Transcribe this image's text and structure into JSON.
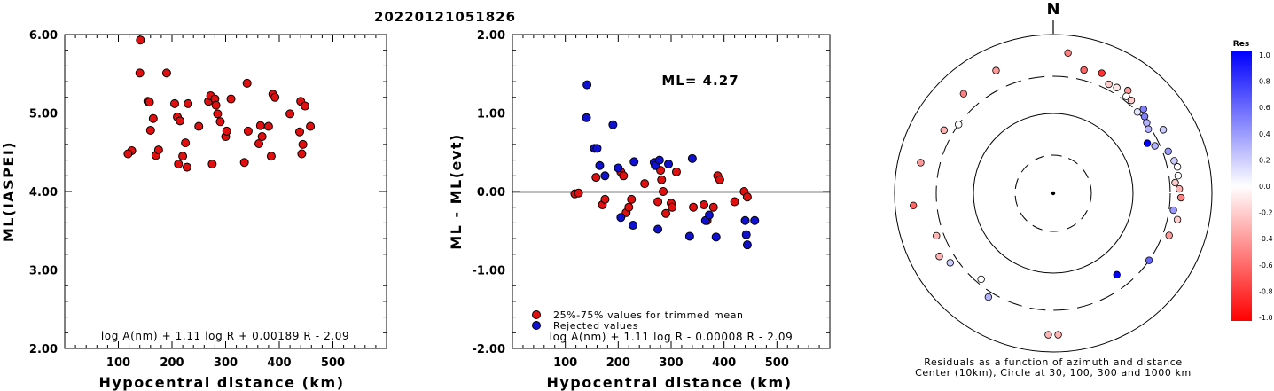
{
  "title": "20220121051826",
  "chart_data": [
    {
      "type": "scatter",
      "xlabel": "Hypocentral distance (km)",
      "ylabel": "ML(IASPEI)",
      "xlim": [
        0,
        600
      ],
      "ylim": [
        2.0,
        6.0
      ],
      "xticks": [
        "100",
        "200",
        "300",
        "400",
        "500"
      ],
      "yticks": [
        "2.00",
        "3.00",
        "4.00",
        "5.00",
        "6.00"
      ],
      "formula": "log A(nm) + 1.11 log R + 0.00189 R - 2.09",
      "points": [
        [
          141,
          5.93
        ],
        [
          140,
          5.51
        ],
        [
          190,
          5.51
        ],
        [
          125,
          4.52
        ],
        [
          118,
          4.48
        ],
        [
          155,
          5.15
        ],
        [
          158,
          5.14
        ],
        [
          160,
          4.78
        ],
        [
          165,
          4.93
        ],
        [
          170,
          4.46
        ],
        [
          175,
          4.53
        ],
        [
          205,
          5.12
        ],
        [
          210,
          4.95
        ],
        [
          212,
          4.35
        ],
        [
          215,
          4.9
        ],
        [
          220,
          4.45
        ],
        [
          225,
          4.62
        ],
        [
          230,
          5.12
        ],
        [
          228,
          4.31
        ],
        [
          250,
          4.83
        ],
        [
          268,
          5.15
        ],
        [
          272,
          5.22
        ],
        [
          275,
          4.35
        ],
        [
          280,
          5.18
        ],
        [
          282,
          5.1
        ],
        [
          285,
          4.99
        ],
        [
          290,
          4.89
        ],
        [
          300,
          4.7
        ],
        [
          302,
          4.77
        ],
        [
          310,
          5.18
        ],
        [
          335,
          4.37
        ],
        [
          340,
          5.38
        ],
        [
          342,
          4.77
        ],
        [
          362,
          4.61
        ],
        [
          365,
          4.84
        ],
        [
          368,
          4.7
        ],
        [
          380,
          4.83
        ],
        [
          385,
          4.45
        ],
        [
          388,
          5.24
        ],
        [
          392,
          5.2
        ],
        [
          420,
          4.99
        ],
        [
          438,
          4.76
        ],
        [
          440,
          5.15
        ],
        [
          442,
          4.48
        ],
        [
          444,
          4.6
        ],
        [
          448,
          5.09
        ],
        [
          458,
          4.83
        ]
      ]
    },
    {
      "type": "scatter",
      "xlabel": "Hypocentral distance (km)",
      "ylabel": "ML - ML(evt)",
      "xlim": [
        0,
        600
      ],
      "ylim": [
        -2.0,
        2.0
      ],
      "xticks": [
        "100",
        "200",
        "300",
        "400",
        "500"
      ],
      "yticks": [
        "-2.00",
        "-1.00",
        "0.00",
        "1.00",
        "2.00"
      ],
      "annotation": "ML= 4.27",
      "formula": "log A(nm) + 1.11 log R - 0.00008 R - 2.09",
      "series": [
        {
          "name": "25%-75% values for trimmed mean",
          "color": "#e01010",
          "points": [
            [
              118,
              -0.03
            ],
            [
              125,
              -0.02
            ],
            [
              158,
              0.18
            ],
            [
              170,
              -0.17
            ],
            [
              175,
              -0.1
            ],
            [
              205,
              0.25
            ],
            [
              210,
              0.2
            ],
            [
              215,
              -0.27
            ],
            [
              220,
              -0.2
            ],
            [
              225,
              -0.1
            ],
            [
              250,
              0.1
            ],
            [
              275,
              -0.13
            ],
            [
              280,
              0.27
            ],
            [
              282,
              0.15
            ],
            [
              285,
              0.0
            ],
            [
              290,
              -0.28
            ],
            [
              300,
              -0.15
            ],
            [
              302,
              -0.2
            ],
            [
              310,
              0.25
            ],
            [
              342,
              -0.2
            ],
            [
              362,
              -0.17
            ],
            [
              368,
              -0.37
            ],
            [
              380,
              -0.2
            ],
            [
              388,
              0.2
            ],
            [
              392,
              0.15
            ],
            [
              420,
              -0.13
            ],
            [
              438,
              0.0
            ],
            [
              444,
              -0.07
            ]
          ]
        },
        {
          "name": "Rejected values",
          "color": "#1010d0",
          "points": [
            [
              141,
              1.36
            ],
            [
              140,
              0.94
            ],
            [
              190,
              0.85
            ],
            [
              155,
              0.55
            ],
            [
              160,
              0.55
            ],
            [
              165,
              0.33
            ],
            [
              175,
              0.2
            ],
            [
              200,
              0.3
            ],
            [
              205,
              -0.33
            ],
            [
              230,
              0.38
            ],
            [
              228,
              -0.43
            ],
            [
              268,
              0.37
            ],
            [
              270,
              0.33
            ],
            [
              275,
              -0.48
            ],
            [
              278,
              0.4
            ],
            [
              295,
              0.35
            ],
            [
              335,
              -0.57
            ],
            [
              340,
              0.42
            ],
            [
              365,
              -0.37
            ],
            [
              372,
              -0.3
            ],
            [
              385,
              -0.58
            ],
            [
              440,
              -0.37
            ],
            [
              442,
              -0.55
            ],
            [
              444,
              -0.68
            ],
            [
              458,
              -0.37
            ]
          ]
        }
      ]
    },
    {
      "type": "polar-scatter",
      "top_label": "N",
      "caption_line1": "Residuals as a function of azimuth and distance",
      "caption_line2": "Center (10km), Circle at 30, 100, 300 and 1000 km",
      "rings_km": [
        30,
        100,
        300,
        1000
      ],
      "points": [
        {
          "az": 14,
          "dist": 400,
          "res": -0.6
        },
        {
          "az": 22,
          "dist": 430,
          "res": -0.8
        },
        {
          "az": 36,
          "dist": 400,
          "res": -0.4
        },
        {
          "az": 27,
          "dist": 350,
          "res": -0.2
        },
        {
          "az": 31,
          "dist": 360,
          "res": -0.1
        },
        {
          "az": 37,
          "dist": 340,
          "res": 0.0
        },
        {
          "az": 46,
          "dist": 300,
          "res": 0.1
        },
        {
          "az": 40,
          "dist": 340,
          "res": -0.2
        },
        {
          "az": 47,
          "dist": 360,
          "res": 0.5
        },
        {
          "az": 50,
          "dist": 320,
          "res": 0.5
        },
        {
          "az": 53,
          "dist": 300,
          "res": 0.3
        },
        {
          "az": 56,
          "dist": 280,
          "res": 0.3
        },
        {
          "az": 62,
          "dist": 220,
          "res": 1.0
        },
        {
          "az": 65,
          "dist": 260,
          "res": 0.3
        },
        {
          "az": 60,
          "dist": 400,
          "res": 0.2
        },
        {
          "az": 70,
          "dist": 350,
          "res": 0.4
        },
        {
          "az": 75,
          "dist": 380,
          "res": 0.2
        },
        {
          "az": 78,
          "dist": 400,
          "res": 0.0
        },
        {
          "az": 82,
          "dist": 390,
          "res": 0.0
        },
        {
          "az": 85,
          "dist": 350,
          "res": -0.2
        },
        {
          "az": 88,
          "dist": 390,
          "res": -0.3
        },
        {
          "az": 92,
          "dist": 410,
          "res": -0.5
        },
        {
          "az": 98,
          "dist": 340,
          "res": 0.4
        },
        {
          "az": 102,
          "dist": 400,
          "res": -0.2
        },
        {
          "az": 110,
          "dist": 360,
          "res": -0.4
        },
        {
          "az": 125,
          "dist": 300,
          "res": 0.6
        },
        {
          "az": 142,
          "dist": 200,
          "res": 1.0
        },
        {
          "az": 178,
          "dist": 610,
          "res": -0.3
        },
        {
          "az": 182,
          "dist": 610,
          "res": -0.3
        },
        {
          "az": 212,
          "dist": 350,
          "res": 0.3
        },
        {
          "az": 220,
          "dist": 260,
          "res": 0.0
        },
        {
          "az": 236,
          "dist": 370,
          "res": 0.2
        },
        {
          "az": 241,
          "dist": 440,
          "res": -0.3
        },
        {
          "az": 250,
          "dist": 370,
          "res": -0.3
        },
        {
          "az": 265,
          "dist": 590,
          "res": -0.6
        },
        {
          "az": 283,
          "dist": 520,
          "res": -0.4
        },
        {
          "az": 300,
          "dist": 390,
          "res": -0.3
        },
        {
          "az": 306,
          "dist": 300,
          "res": 0.0
        },
        {
          "az": 318,
          "dist": 490,
          "res": -0.5
        },
        {
          "az": 335,
          "dist": 510,
          "res": -0.4
        },
        {
          "az": 6,
          "dist": 600,
          "res": -0.5
        }
      ]
    }
  ],
  "colorbar": {
    "title": "Res",
    "ticks": [
      "1.0",
      "0.8",
      "0.6",
      "0.4",
      "0.2",
      "0.0",
      "-0.2",
      "-0.4",
      "-0.6",
      "-0.8",
      "-1.0"
    ]
  }
}
